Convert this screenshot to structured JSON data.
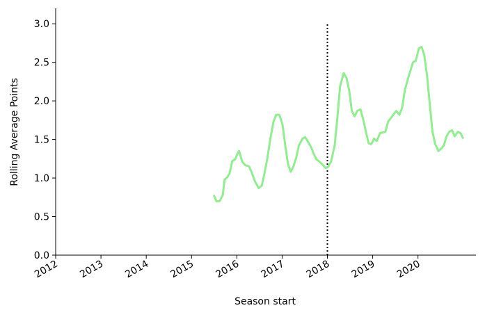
{
  "chart_data": {
    "type": "line",
    "x_label": "Season start",
    "y_label": "Rolling Average Points",
    "x": [
      2015.49,
      2015.55,
      2015.62,
      2015.69,
      2015.73,
      2015.79,
      2015.84,
      2015.9,
      2015.96,
      2016.01,
      2016.05,
      2016.12,
      2016.18,
      2016.27,
      2016.33,
      2016.39,
      2016.48,
      2016.55,
      2016.61,
      2016.67,
      2016.74,
      2016.81,
      2016.87,
      2016.94,
      2017.01,
      2017.07,
      2017.13,
      2017.19,
      2017.25,
      2017.31,
      2017.37,
      2017.45,
      2017.51,
      2017.57,
      2017.64,
      2017.7,
      2017.76,
      2017.83,
      2017.9,
      2017.96,
      2018.02,
      2018.08,
      2018.16,
      2018.22,
      2018.28,
      2018.36,
      2018.42,
      2018.48,
      2018.54,
      2018.6,
      2018.66,
      2018.73,
      2018.79,
      2018.85,
      2018.91,
      2018.97,
      2019.03,
      2019.09,
      2019.16,
      2019.22,
      2019.28,
      2019.34,
      2019.43,
      2019.52,
      2019.59,
      2019.65,
      2019.71,
      2019.8,
      2019.89,
      2019.95,
      2020.02,
      2020.08,
      2020.14,
      2020.2,
      2020.26,
      2020.32,
      2020.38,
      2020.45,
      2020.51,
      2020.57,
      2020.63,
      2020.69,
      2020.75,
      2020.81,
      2020.88,
      2020.94,
      2021.0
    ],
    "series": [
      {
        "color": "#90ee90",
        "values": [
          0.78,
          0.7,
          0.7,
          0.78,
          0.98,
          1.01,
          1.06,
          1.22,
          1.24,
          1.31,
          1.35,
          1.21,
          1.17,
          1.15,
          1.07,
          0.97,
          0.87,
          0.9,
          1.06,
          1.24,
          1.51,
          1.73,
          1.82,
          1.82,
          1.69,
          1.42,
          1.18,
          1.08,
          1.15,
          1.26,
          1.42,
          1.51,
          1.53,
          1.47,
          1.4,
          1.31,
          1.24,
          1.21,
          1.17,
          1.13,
          1.15,
          1.21,
          1.42,
          1.78,
          2.19,
          2.36,
          2.3,
          2.14,
          1.87,
          1.8,
          1.87,
          1.89,
          1.76,
          1.6,
          1.45,
          1.44,
          1.51,
          1.48,
          1.58,
          1.59,
          1.6,
          1.73,
          1.8,
          1.87,
          1.82,
          1.91,
          2.14,
          2.33,
          2.5,
          2.52,
          2.68,
          2.7,
          2.59,
          2.33,
          1.96,
          1.6,
          1.44,
          1.35,
          1.38,
          1.42,
          1.54,
          1.6,
          1.62,
          1.54,
          1.6,
          1.58,
          1.51
        ]
      }
    ],
    "xlim": [
      2012,
      2021.28
    ],
    "xticks": [
      2012,
      2013,
      2014,
      2015,
      2016,
      2017,
      2018,
      2019,
      2020
    ],
    "ylim": [
      0,
      3.2
    ],
    "yticks": [
      {
        "value": 0,
        "label": "0.0"
      },
      {
        "value": 0.5,
        "label": "0.5"
      },
      {
        "value": 1,
        "label": "1.0"
      },
      {
        "value": 1.5,
        "label": "1.5"
      },
      {
        "value": 2,
        "label": "2.0"
      },
      {
        "value": 2.5,
        "label": "2.5"
      },
      {
        "value": 3,
        "label": "3.0"
      }
    ],
    "vline": {
      "x": 2018,
      "ymax": 3.0,
      "color": "#000000"
    }
  }
}
